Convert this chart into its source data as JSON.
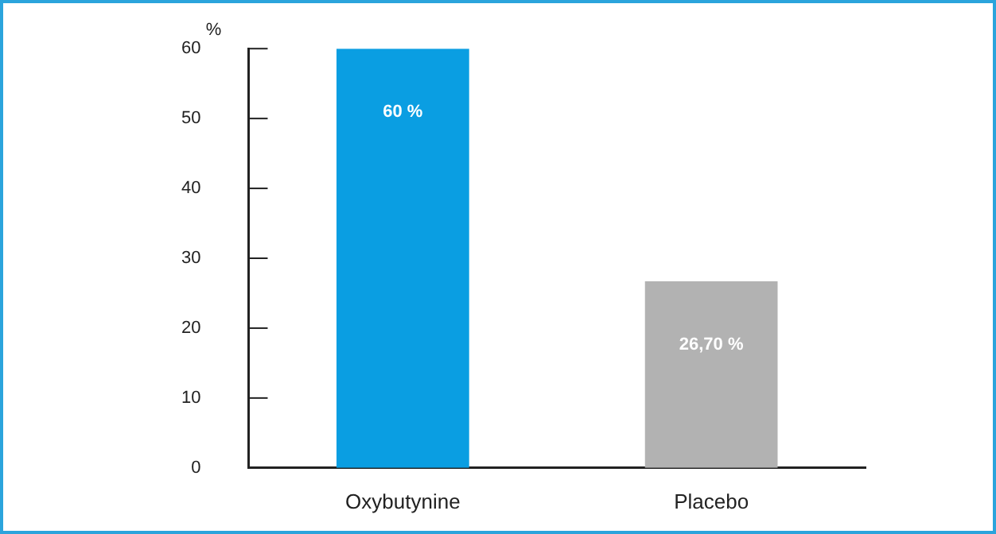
{
  "chart_data": {
    "type": "bar",
    "ylabel": "%",
    "categories": [
      "Oxybutynine",
      "Placebo"
    ],
    "values": [
      60,
      26.7
    ],
    "colors": [
      "#0a9ee2",
      "#b2b2b2"
    ],
    "value_labels": [
      "60 %",
      "26,70 %"
    ],
    "ylim": [
      0,
      60
    ],
    "yticks": [
      0,
      10,
      20,
      30,
      40,
      50,
      60
    ]
  }
}
